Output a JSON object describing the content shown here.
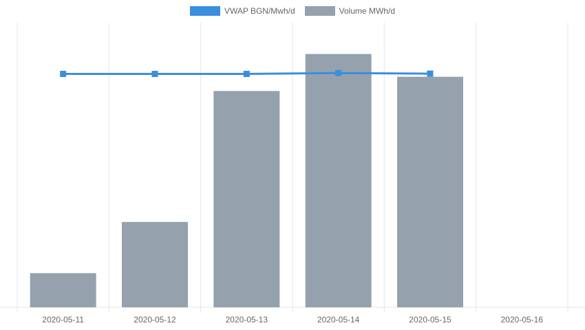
{
  "legend": {
    "line_label": "VWAP BGN/Mwh/d",
    "bar_label": "Volume MWh/d"
  },
  "colors": {
    "line": "#3a8ede",
    "bar": "#95a2ad",
    "grid": "#e6e6e6",
    "tick_text": "#666666"
  },
  "chart_data": {
    "type": "bar",
    "categories": [
      "2020-05-11",
      "2020-05-12",
      "2020-05-13",
      "2020-05-14",
      "2020-05-15",
      "2020-05-16"
    ],
    "series": [
      {
        "name": "Volume MWh/d",
        "type": "bar",
        "values": [
          12,
          30,
          76,
          89,
          81,
          null
        ]
      },
      {
        "name": "VWAP BGN/Mwh/d",
        "type": "line",
        "values": [
          82,
          82,
          82,
          82.3,
          82.1,
          null
        ]
      }
    ],
    "ylim": [
      0,
      100
    ],
    "grid": true,
    "legend_position": "top"
  }
}
